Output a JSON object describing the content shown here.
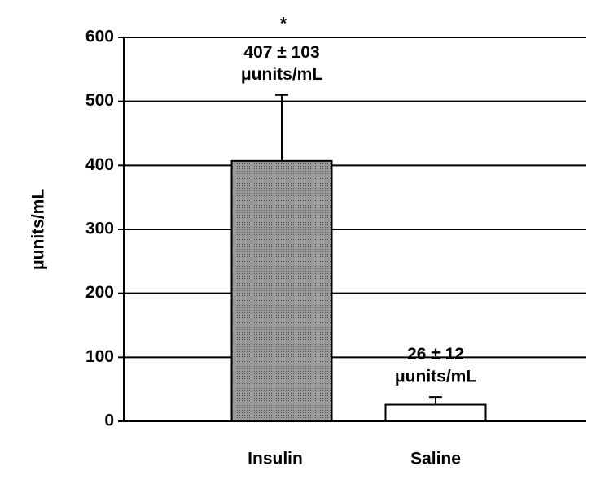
{
  "chart_data": {
    "type": "bar",
    "ylabel": "μunits/mL",
    "categories": [
      "Insulin",
      "Saline"
    ],
    "values": [
      407,
      26
    ],
    "errors": [
      103,
      12
    ],
    "value_labels": [
      "407 ± 103\nμunits/mL",
      "26 ± 12\nμunits/mL"
    ],
    "colors": [
      "#8c8c8c",
      "#ffffff"
    ],
    "annotation": "*",
    "ylim": [
      0,
      600
    ],
    "yticks": [
      0,
      100,
      200,
      300,
      400,
      500,
      600
    ],
    "grid": true
  }
}
